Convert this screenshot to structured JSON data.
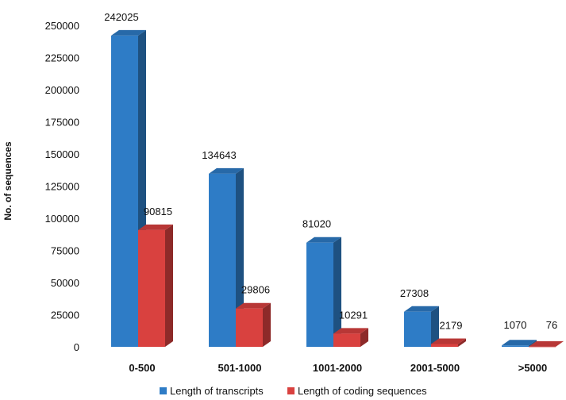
{
  "chart_data": {
    "type": "bar",
    "title": "",
    "xlabel": "",
    "ylabel": "No. of sequences",
    "ylim": [
      0,
      250000
    ],
    "yticks": [
      0,
      25000,
      50000,
      75000,
      100000,
      125000,
      150000,
      175000,
      200000,
      225000,
      250000
    ],
    "categories": [
      "0-500",
      "501-1000",
      "1001-2000",
      "2001-5000",
      ">5000"
    ],
    "series": [
      {
        "name": "Length of transcripts",
        "color": "#2e7cc6",
        "values": [
          242025,
          134643,
          81020,
          27308,
          1070
        ]
      },
      {
        "name": "Length of coding sequences",
        "color": "#d9413f",
        "values": [
          90815,
          29806,
          10291,
          2179,
          76
        ]
      }
    ],
    "grid": false,
    "legend_position": "bottom",
    "style": "3d-columns"
  }
}
